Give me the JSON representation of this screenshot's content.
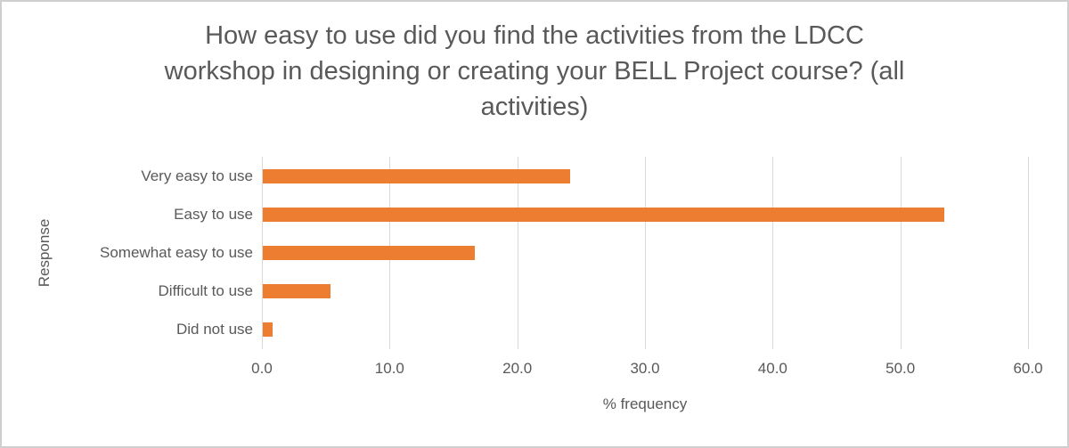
{
  "chart_data": {
    "type": "bar",
    "orientation": "horizontal",
    "title": "How easy to use did you find the activities from the LDCC workshop in designing or creating your BELL Project course? (all activities)",
    "title_lines": [
      "How easy to use did you find the activities from the LDCC",
      "workshop in designing or creating your BELL Project course? (all",
      "activities)"
    ],
    "categories": [
      "Very easy to use",
      "Easy to use",
      "Somewhat easy to use",
      "Difficult to use",
      "Did not use"
    ],
    "values": [
      24.1,
      53.4,
      16.6,
      5.3,
      0.8
    ],
    "xlabel": "% frequency",
    "ylabel": "Response",
    "xlim": [
      0,
      60
    ],
    "xticks": [
      0,
      10,
      20,
      30,
      40,
      50,
      60
    ],
    "xtick_labels": [
      "0.0",
      "10.0",
      "20.0",
      "30.0",
      "40.0",
      "50.0",
      "60.0"
    ],
    "grid": "vertical-only",
    "legend": "none",
    "colors": {
      "bar": "#ED7D31",
      "text": "#595959",
      "gridline": "#D9D9D9",
      "frame_border": "#CFCFCF",
      "background": "#FFFFFF"
    }
  }
}
